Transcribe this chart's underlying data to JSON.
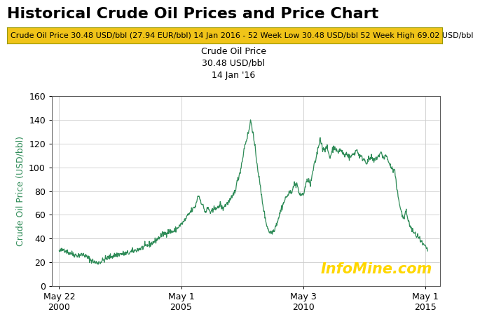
{
  "title": "Historical Crude Oil Prices and Price Chart",
  "banner_text": "Crude Oil Price 30.48 USD/bbl (27.94 EUR/bbl) 14 Jan 2016 - 52 Week Low 30.48 USD/bbl 52 Week High 69.02 USD/bbl",
  "banner_bg": "#F0C419",
  "chart_title_line1": "Crude Oil Price",
  "chart_title_line2": "30.48 USD/bbl",
  "chart_title_line3": "14 Jan '16",
  "ylabel": "Crude Oil Price (USD/bbl)",
  "watermark": "InfoMine.com",
  "line_color": "#2E8B57",
  "background_color": "#ffffff",
  "ylim": [
    0,
    160
  ],
  "yticks": [
    0,
    20,
    40,
    60,
    80,
    100,
    120,
    140,
    160
  ],
  "xtick_labels": [
    "May 22\n2000",
    "May 1\n2005",
    "May 3\n2010",
    "May 1\n2015"
  ],
  "xtick_positions": [
    0,
    5,
    10,
    15
  ],
  "title_fontsize": 16,
  "banner_fontsize": 8,
  "ylabel_fontsize": 9,
  "tick_fontsize": 9,
  "annotation_fontsize": 9,
  "watermark_fontsize": 15
}
